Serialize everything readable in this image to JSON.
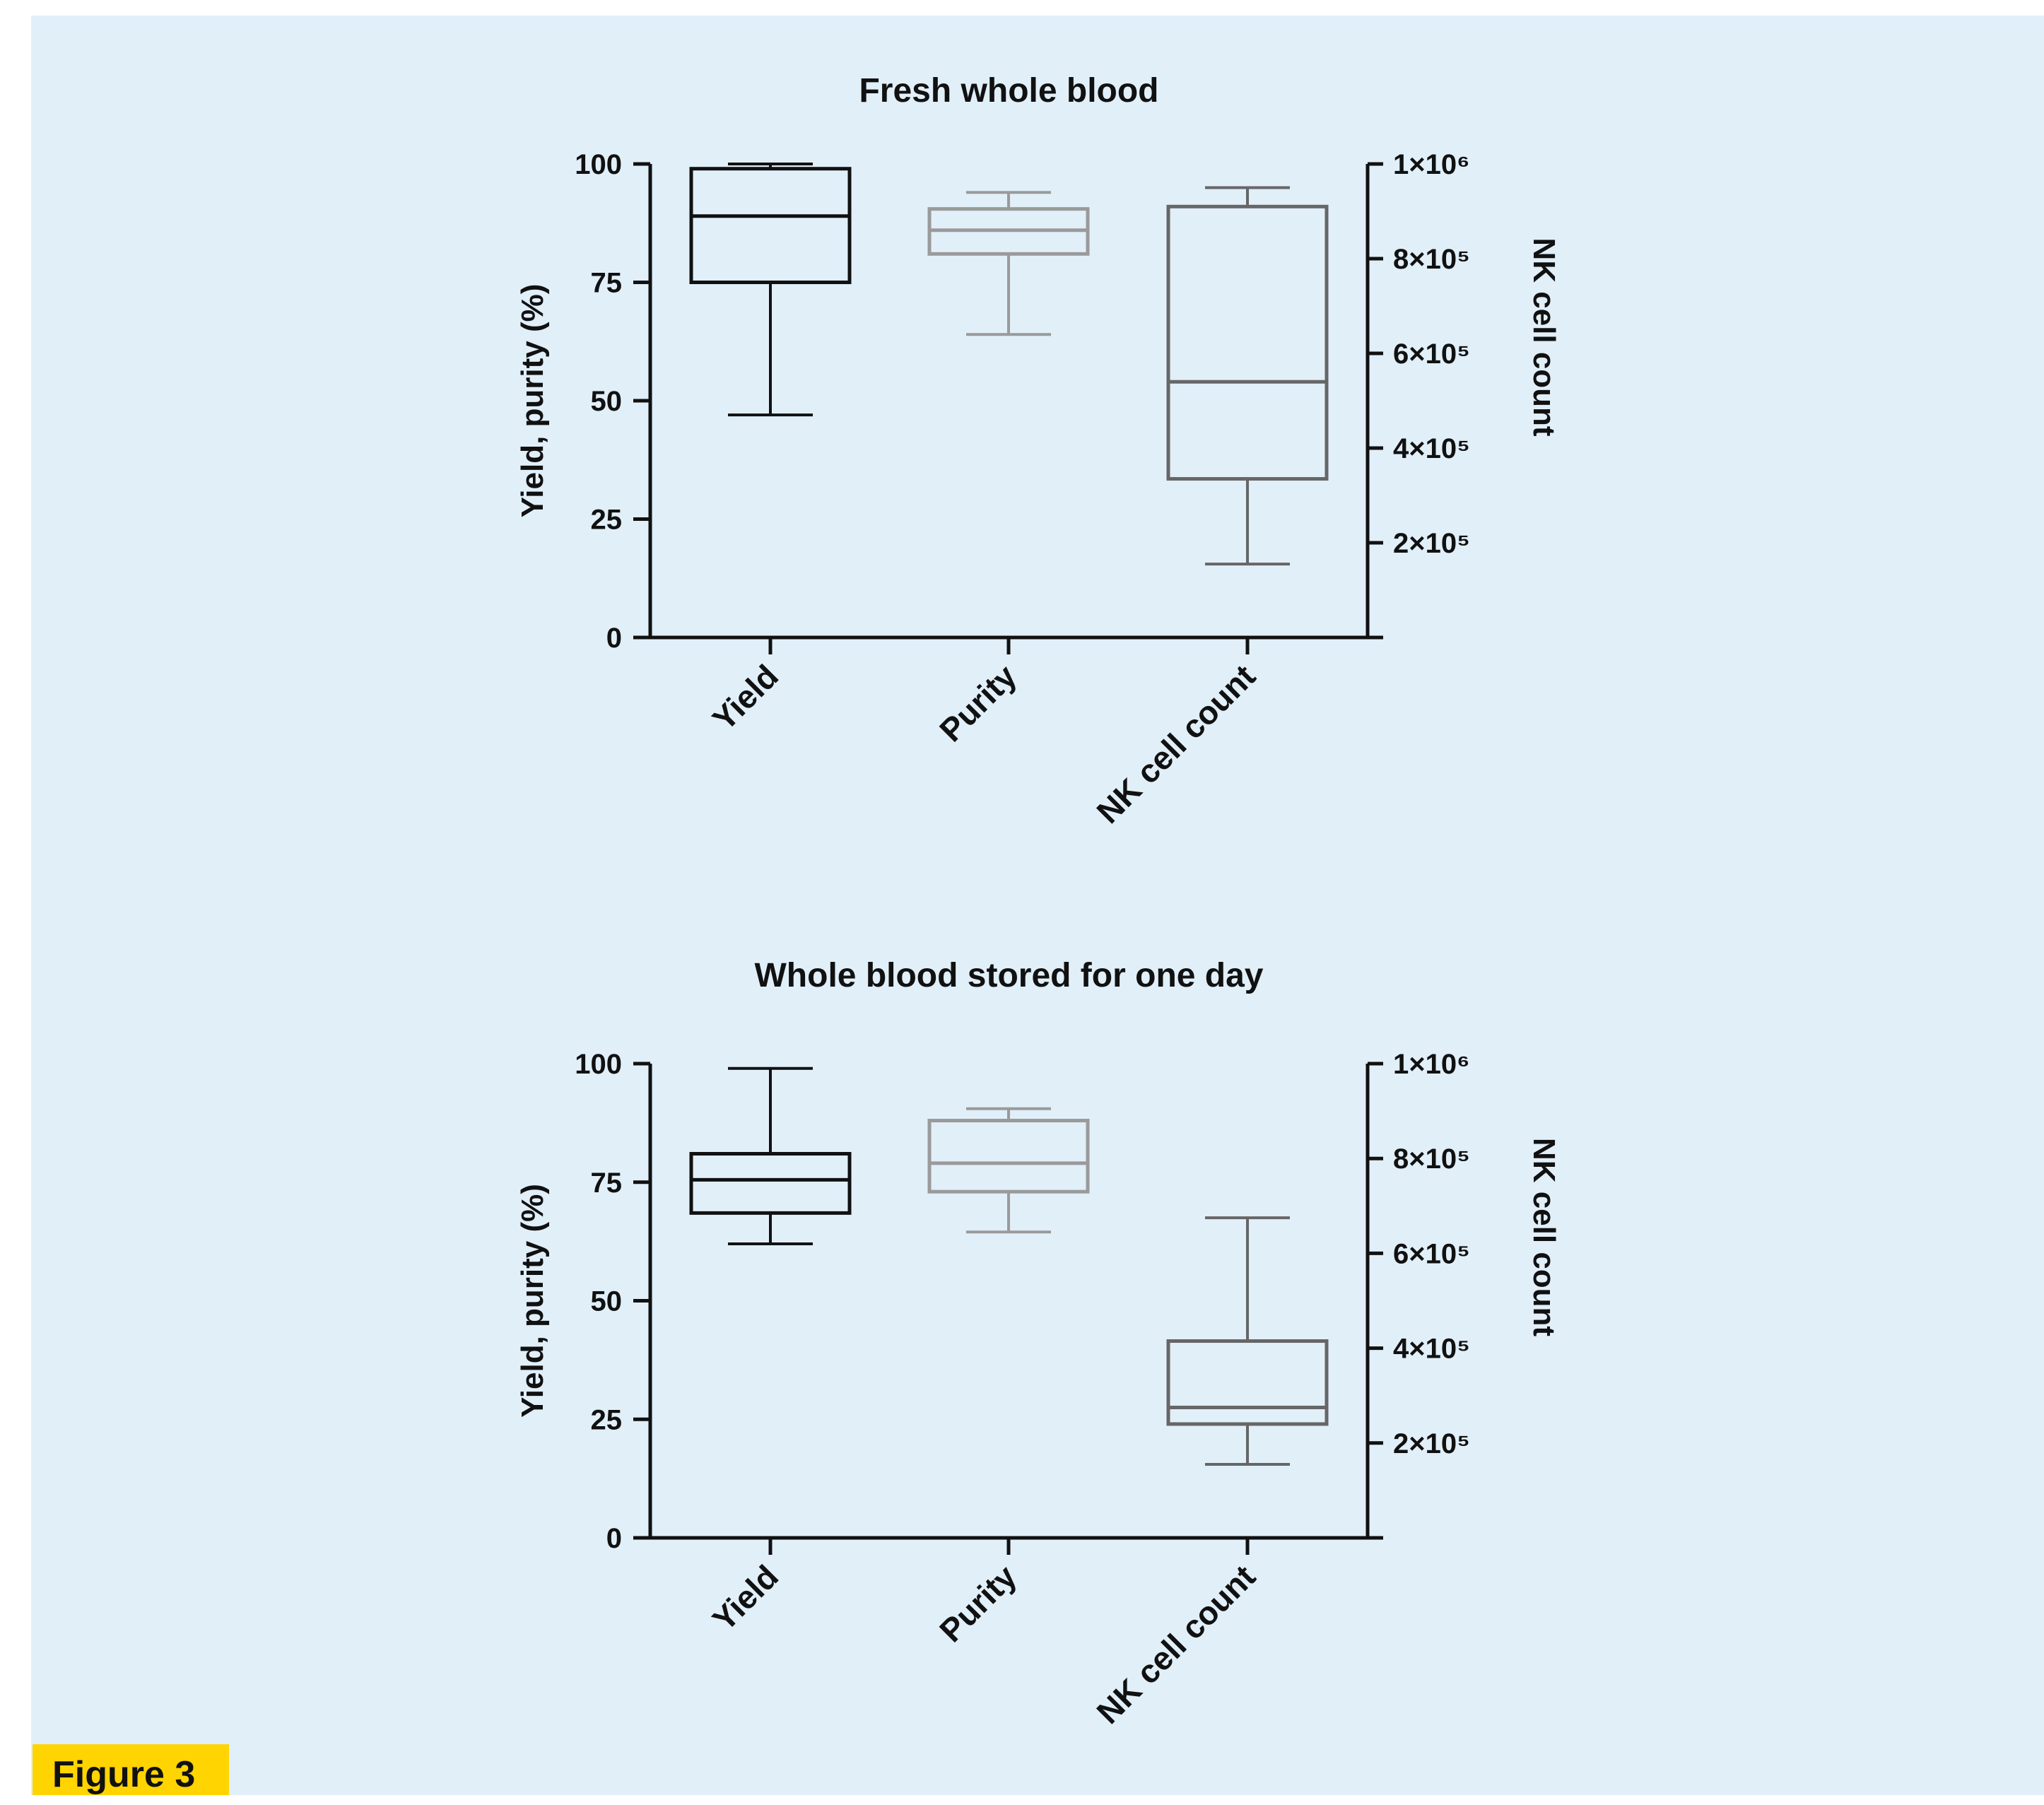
{
  "figure_label": "Figure 3",
  "colors": {
    "background": "#e1eff9",
    "label_bg": "#ffd400",
    "yield": "#111111",
    "purity": "#9a9a9a",
    "nk": "#666666"
  },
  "chart_data": [
    {
      "type": "box",
      "title": "Fresh whole blood",
      "ylabel_left": "Yield, purity (%)",
      "ylabel_right": "NK cell count",
      "yleft_ticks": [
        "100",
        "75",
        "50",
        "25",
        "0"
      ],
      "yright_ticks": [
        "1×10⁶",
        "8×10⁵",
        "6×10⁵",
        "4×10⁵",
        "2×10⁵"
      ],
      "ylim_left": [
        0,
        100
      ],
      "ylim_right": [
        0,
        1000000
      ],
      "categories": [
        "Yield",
        "Purity",
        "NK cell count"
      ],
      "boxes": [
        {
          "name": "Yield",
          "axis": "left",
          "min": 47,
          "q1": 75,
          "median": 89,
          "q3": 99,
          "max": 100
        },
        {
          "name": "Purity",
          "axis": "left",
          "min": 64,
          "q1": 81,
          "median": 86,
          "q3": 90.5,
          "max": 94
        },
        {
          "name": "NK cell count",
          "axis": "right",
          "min": 155000,
          "q1": 335000,
          "median": 540000,
          "q3": 910000,
          "max": 950000
        }
      ]
    },
    {
      "type": "box",
      "title": "Whole blood stored for one day",
      "ylabel_left": "Yield, purity (%)",
      "ylabel_right": "NK cell count",
      "yleft_ticks": [
        "100",
        "75",
        "50",
        "25",
        "0"
      ],
      "yright_ticks": [
        "1×10⁶",
        "8×10⁵",
        "6×10⁵",
        "4×10⁵",
        "2×10⁵"
      ],
      "ylim_left": [
        0,
        100
      ],
      "ylim_right": [
        0,
        1000000
      ],
      "categories": [
        "Yield",
        "Purity",
        "NK cell count"
      ],
      "boxes": [
        {
          "name": "Yield",
          "axis": "left",
          "min": 62,
          "q1": 68.5,
          "median": 75.5,
          "q3": 81,
          "max": 99
        },
        {
          "name": "Purity",
          "axis": "left",
          "min": 64.5,
          "q1": 73,
          "median": 79,
          "q3": 88,
          "max": 90.5
        },
        {
          "name": "NK cell count",
          "axis": "right",
          "min": 155000,
          "q1": 240000,
          "median": 275000,
          "q3": 415000,
          "max": 675000
        }
      ]
    }
  ]
}
